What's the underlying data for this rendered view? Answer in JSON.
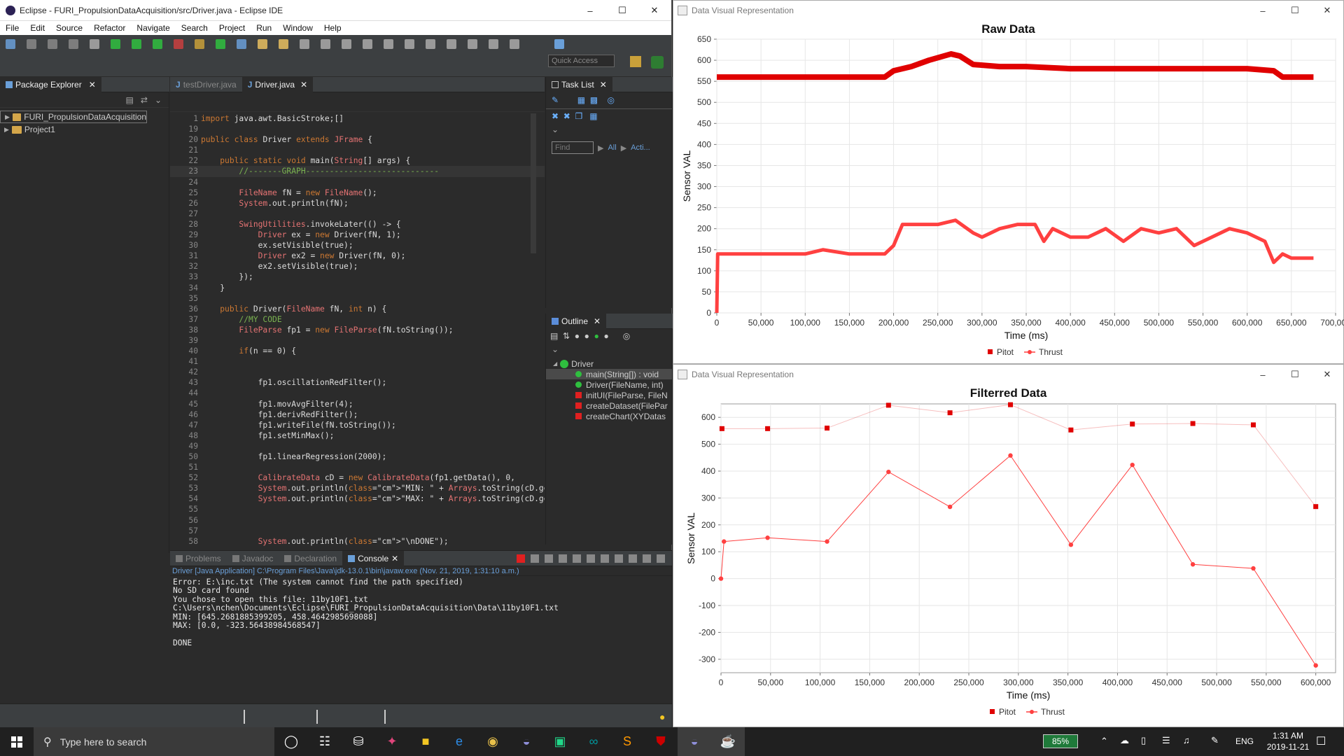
{
  "eclipse": {
    "title": "Eclipse - FURI_PropulsionDataAcquisition/src/Driver.java - Eclipse IDE",
    "menu": [
      "File",
      "Edit",
      "Source",
      "Refactor",
      "Navigate",
      "Search",
      "Project",
      "Run",
      "Window",
      "Help"
    ],
    "quick_access_placeholder": "Quick Access",
    "package_explorer": {
      "tab_label": "Package Explorer",
      "items": [
        "FURI_PropulsionDataAcquisition",
        "Project1"
      ]
    },
    "editor": {
      "tabs": [
        "testDriver.java",
        "Driver.java"
      ],
      "lines": [
        {
          "n": "1",
          "t": "import java.awt.BasicStroke;[]"
        },
        {
          "n": "19",
          "t": ""
        },
        {
          "n": "20",
          "t": "public class Driver extends JFrame {"
        },
        {
          "n": "21",
          "t": ""
        },
        {
          "n": "22",
          "t": "    public static void main(String[] args) {"
        },
        {
          "n": "23",
          "t": "        //-------GRAPH----------------------------"
        },
        {
          "n": "24",
          "t": ""
        },
        {
          "n": "25",
          "t": "        FileName fN = new FileName();"
        },
        {
          "n": "26",
          "t": "        System.out.println(fN);"
        },
        {
          "n": "27",
          "t": ""
        },
        {
          "n": "28",
          "t": "        SwingUtilities.invokeLater(() -> {"
        },
        {
          "n": "29",
          "t": "            Driver ex = new Driver(fN, 1);"
        },
        {
          "n": "30",
          "t": "            ex.setVisible(true);"
        },
        {
          "n": "31",
          "t": "            Driver ex2 = new Driver(fN, 0);"
        },
        {
          "n": "32",
          "t": "            ex2.setVisible(true);"
        },
        {
          "n": "33",
          "t": "        });"
        },
        {
          "n": "34",
          "t": "    }"
        },
        {
          "n": "35",
          "t": ""
        },
        {
          "n": "36",
          "t": "    public Driver(FileName fN, int n) {"
        },
        {
          "n": "37",
          "t": "        //MY CODE"
        },
        {
          "n": "38",
          "t": "        FileParse fp1 = new FileParse(fN.toString());"
        },
        {
          "n": "39",
          "t": ""
        },
        {
          "n": "40",
          "t": "        if(n == 0) {"
        },
        {
          "n": "41",
          "t": ""
        },
        {
          "n": "42",
          "t": ""
        },
        {
          "n": "43",
          "t": "            fp1.oscillationRedFilter();"
        },
        {
          "n": "44",
          "t": ""
        },
        {
          "n": "45",
          "t": "            fp1.movAvgFilter(4);"
        },
        {
          "n": "46",
          "t": "            fp1.derivRedFilter();"
        },
        {
          "n": "47",
          "t": "            fp1.writeFile(fN.toString());"
        },
        {
          "n": "48",
          "t": "            fp1.setMinMax();"
        },
        {
          "n": "49",
          "t": ""
        },
        {
          "n": "50",
          "t": "            fp1.linearRegression(2000);"
        },
        {
          "n": "51",
          "t": ""
        },
        {
          "n": "52",
          "t": "            CalibrateData cD = new CalibrateData(fp1.getData(), 0,"
        },
        {
          "n": "53",
          "t": "            System.out.println(\"MIN: \" + Arrays.toString(cD.getMin("
        },
        {
          "n": "54",
          "t": "            System.out.println(\"MAX: \" + Arrays.toString(cD.getMax("
        },
        {
          "n": "55",
          "t": ""
        },
        {
          "n": "56",
          "t": ""
        },
        {
          "n": "57",
          "t": ""
        },
        {
          "n": "58",
          "t": "            System.out.println(\"\\nDONE\");"
        },
        {
          "n": "59",
          "t": "        }"
        }
      ]
    },
    "task_list": {
      "tab_label": "Task List",
      "find_placeholder": "Find",
      "all_label": "All",
      "acti_label": "Acti..."
    },
    "outline": {
      "tab_label": "Outline",
      "root": "Driver",
      "items": [
        "main(String[]) : void",
        "Driver(FileName, int)",
        "initUI(FileParse, FileN",
        "createDataset(FilePar",
        "createChart(XYDatas"
      ]
    },
    "console": {
      "tabs": [
        "Problems",
        "Javadoc",
        "Declaration",
        "Console"
      ],
      "header": "Driver [Java Application] C:\\Program Files\\Java\\jdk-13.0.1\\bin\\javaw.exe (Nov. 21, 2019, 1:31:10 a.m.)",
      "lines": [
        "Error: E:\\inc.txt (The system cannot find the path specified)",
        "No SD card found",
        "You chose to open this file: 11by10F1.txt",
        "C:\\Users\\nchen\\Documents\\Eclipse\\FURI_PropulsionDataAcquisition\\Data\\11by10F1.txt",
        "MIN: [645.2681885399205, 458.4642985698088]",
        "MAX: [0.0, -323.56438984568547]",
        "",
        "DONE"
      ]
    }
  },
  "chart_windows": [
    {
      "window_title": "Data Visual Representation"
    },
    {
      "window_title": "Data Visual Representation"
    }
  ],
  "chart_data": [
    {
      "type": "line",
      "title": "Raw Data",
      "xlabel": "Time (ms)",
      "ylabel": "Sensor VAL",
      "xlim": [
        0,
        700000
      ],
      "ylim": [
        0,
        650
      ],
      "x_ticks": [
        "0",
        "50,000",
        "100,000",
        "150,000",
        "200,000",
        "250,000",
        "300,000",
        "350,000",
        "400,000",
        "450,000",
        "500,000",
        "550,000",
        "600,000",
        "650,000",
        "700,000"
      ],
      "y_ticks": [
        "0",
        "50",
        "100",
        "150",
        "200",
        "250",
        "300",
        "350",
        "400",
        "450",
        "500",
        "550",
        "600",
        "650"
      ],
      "legend": [
        "Pitot",
        "Thrust"
      ],
      "legend_position": "bottom",
      "series": [
        {
          "name": "Pitot",
          "color": "#e00000",
          "x": [
            0,
            100000,
            190000,
            200000,
            220000,
            240000,
            265000,
            275000,
            290000,
            320000,
            350000,
            400000,
            450000,
            500000,
            550000,
            600000,
            630000,
            640000,
            675000
          ],
          "values": [
            560,
            560,
            560,
            575,
            585,
            600,
            615,
            610,
            590,
            585,
            585,
            580,
            580,
            580,
            580,
            580,
            575,
            560,
            560
          ]
        },
        {
          "name": "Thrust",
          "color": "#ff4040",
          "x": [
            0,
            1000,
            5000,
            50000,
            100000,
            120000,
            150000,
            170000,
            190000,
            200000,
            210000,
            230000,
            250000,
            270000,
            290000,
            300000,
            320000,
            340000,
            360000,
            370000,
            380000,
            400000,
            420000,
            440000,
            460000,
            480000,
            500000,
            520000,
            540000,
            560000,
            580000,
            600000,
            620000,
            630000,
            640000,
            650000,
            675000
          ],
          "values": [
            0,
            140,
            140,
            140,
            140,
            150,
            140,
            140,
            140,
            160,
            210,
            210,
            210,
            220,
            190,
            180,
            200,
            210,
            210,
            170,
            200,
            180,
            180,
            200,
            170,
            200,
            190,
            200,
            160,
            180,
            200,
            190,
            170,
            120,
            140,
            130,
            130
          ]
        }
      ]
    },
    {
      "type": "line",
      "title": "Filterred Data",
      "xlabel": "Time (ms)",
      "ylabel": "Sensor VAL",
      "xlim": [
        0,
        620000
      ],
      "ylim": [
        -350,
        650
      ],
      "x_ticks": [
        "0",
        "50,000",
        "100,000",
        "150,000",
        "200,000",
        "250,000",
        "300,000",
        "350,000",
        "400,000",
        "450,000",
        "500,000",
        "550,000",
        "600,000"
      ],
      "y_ticks": [
        "-300",
        "-200",
        "-100",
        "0",
        "100",
        "200",
        "300",
        "400",
        "500",
        "600"
      ],
      "legend": [
        "Pitot",
        "Thrust"
      ],
      "legend_position": "bottom",
      "series": [
        {
          "name": "Pitot",
          "color": "#e00000",
          "x": [
            1000,
            47000,
            107000,
            169000,
            231000,
            292000,
            353000,
            415000,
            476000,
            537000,
            600000
          ],
          "values": [
            558,
            558,
            560,
            645,
            617,
            647,
            553,
            575,
            577,
            572,
            268
          ]
        },
        {
          "name": "Thrust",
          "color": "#ff4040",
          "x": [
            0,
            3000,
            47000,
            107000,
            169000,
            231000,
            292000,
            353000,
            415000,
            476000,
            537000,
            600000
          ],
          "values": [
            0,
            138,
            152,
            138,
            397,
            267,
            458,
            126,
            423,
            53,
            38,
            -323
          ]
        }
      ]
    }
  ],
  "taskbar": {
    "search_placeholder": "Type here to search",
    "battery": "85%",
    "language": "ENG",
    "time": "1:31 AM",
    "date": "2019-11-21"
  }
}
